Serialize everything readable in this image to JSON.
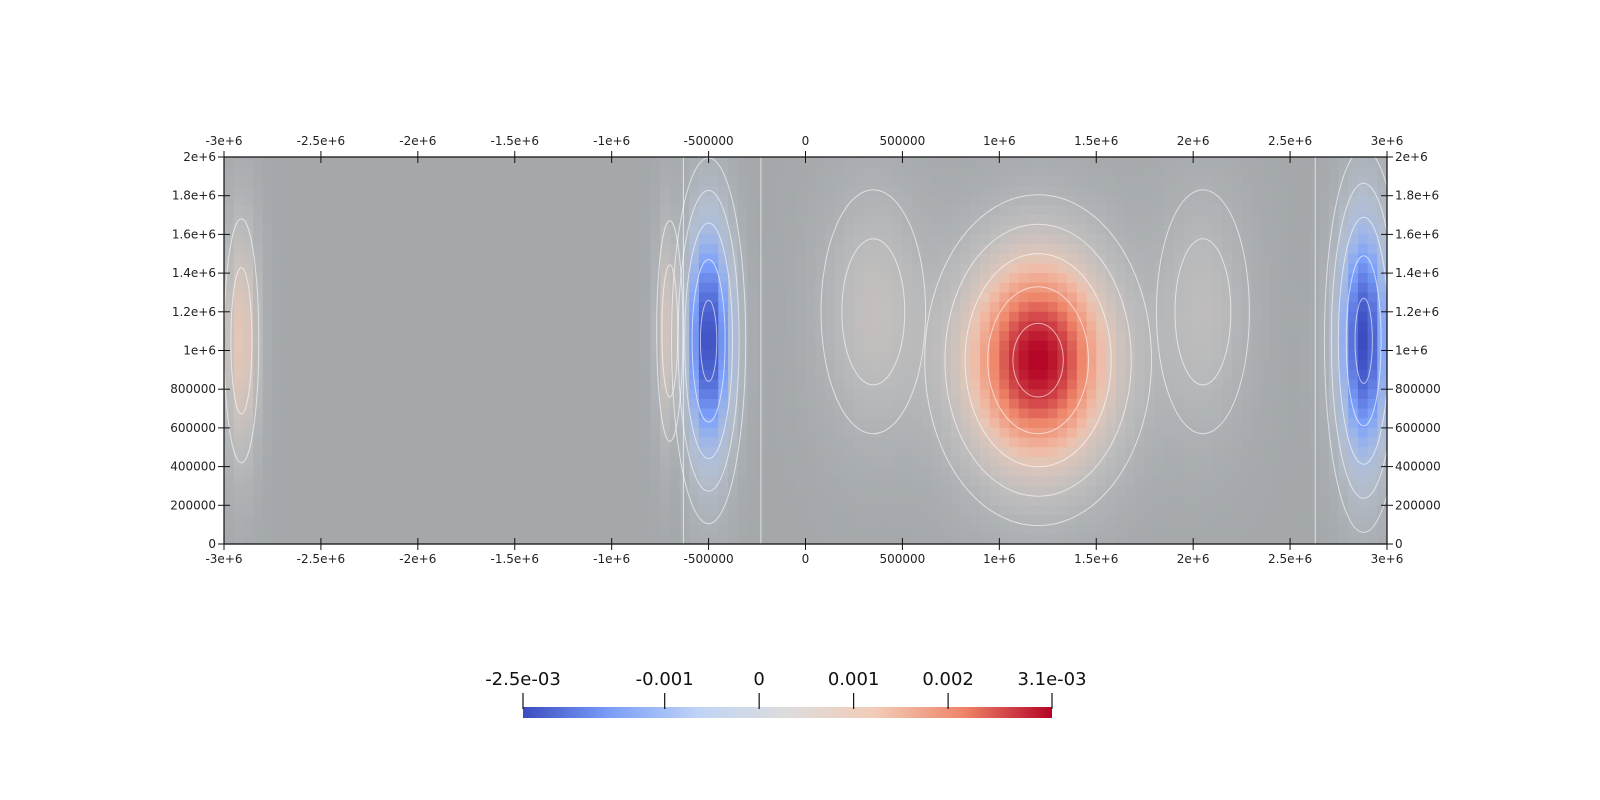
{
  "chart_data": {
    "type": "heatmap",
    "title": "",
    "xlabel": "",
    "ylabel": "",
    "xlim": [
      -3000000,
      3000000
    ],
    "ylim": [
      0,
      2000000
    ],
    "x_ticks": [
      {
        "value": -3000000,
        "label": "-3e+6"
      },
      {
        "value": -2500000,
        "label": "-2.5e+6"
      },
      {
        "value": -2000000,
        "label": "-2e+6"
      },
      {
        "value": -1500000,
        "label": "-1.5e+6"
      },
      {
        "value": -1000000,
        "label": "-1e+6"
      },
      {
        "value": -500000,
        "label": "-500000"
      },
      {
        "value": 0,
        "label": "0"
      },
      {
        "value": 500000,
        "label": "500000"
      },
      {
        "value": 1000000,
        "label": "1e+6"
      },
      {
        "value": 1500000,
        "label": "1.5e+6"
      },
      {
        "value": 2000000,
        "label": "2e+6"
      },
      {
        "value": 2500000,
        "label": "2.5e+6"
      },
      {
        "value": 3000000,
        "label": "3e+6"
      }
    ],
    "y_ticks": [
      {
        "value": 0,
        "label": "0"
      },
      {
        "value": 200000,
        "label": "200000"
      },
      {
        "value": 400000,
        "label": "400000"
      },
      {
        "value": 600000,
        "label": "600000"
      },
      {
        "value": 800000,
        "label": "800000"
      },
      {
        "value": 1000000,
        "label": "1e+6"
      },
      {
        "value": 1200000,
        "label": "1.2e+6"
      },
      {
        "value": 1400000,
        "label": "1.4e+6"
      },
      {
        "value": 1600000,
        "label": "1.6e+6"
      },
      {
        "value": 1800000,
        "label": "1.8e+6"
      },
      {
        "value": 2000000,
        "label": "2e+6"
      }
    ],
    "color_range": [
      -0.0025,
      0.0031
    ],
    "colormap": [
      "#3b4cc0",
      "#7b9ff9",
      "#c0d4f5",
      "#dddcdc",
      "#f2cbb7",
      "#ee8468",
      "#b40426"
    ],
    "background_color": "#a4a8ab",
    "colorbar": {
      "ticks": [
        {
          "value": -0.0025,
          "label": "-2.5e-03"
        },
        {
          "value": -0.001,
          "label": "-0.001"
        },
        {
          "value": 0,
          "label": "0"
        },
        {
          "value": 0.001,
          "label": "0.001"
        },
        {
          "value": 0.002,
          "label": "0.002"
        },
        {
          "value": 0.0031,
          "label": "3.1e-03"
        }
      ]
    },
    "features": [
      {
        "x": -2910000,
        "y": 1050000,
        "sx": 60000,
        "sy": 420000,
        "value": 0.0012
      },
      {
        "x": -700000,
        "y": 1100000,
        "sx": 45000,
        "sy": 380000,
        "value": 0.0011
      },
      {
        "x": -500000,
        "y": 1050000,
        "sx": 85000,
        "sy": 420000,
        "value": -0.0025
      },
      {
        "x": 1200000,
        "y": 950000,
        "sx": 260000,
        "sy": 380000,
        "value": 0.0031
      },
      {
        "x": 350000,
        "y": 1200000,
        "sx": 180000,
        "sy": 420000,
        "value": 0.0006
      },
      {
        "x": 2050000,
        "y": 1200000,
        "sx": 160000,
        "sy": 420000,
        "value": 0.0005
      },
      {
        "x": 2880000,
        "y": 1050000,
        "sx": 90000,
        "sy": 440000,
        "value": -0.0025
      }
    ]
  }
}
